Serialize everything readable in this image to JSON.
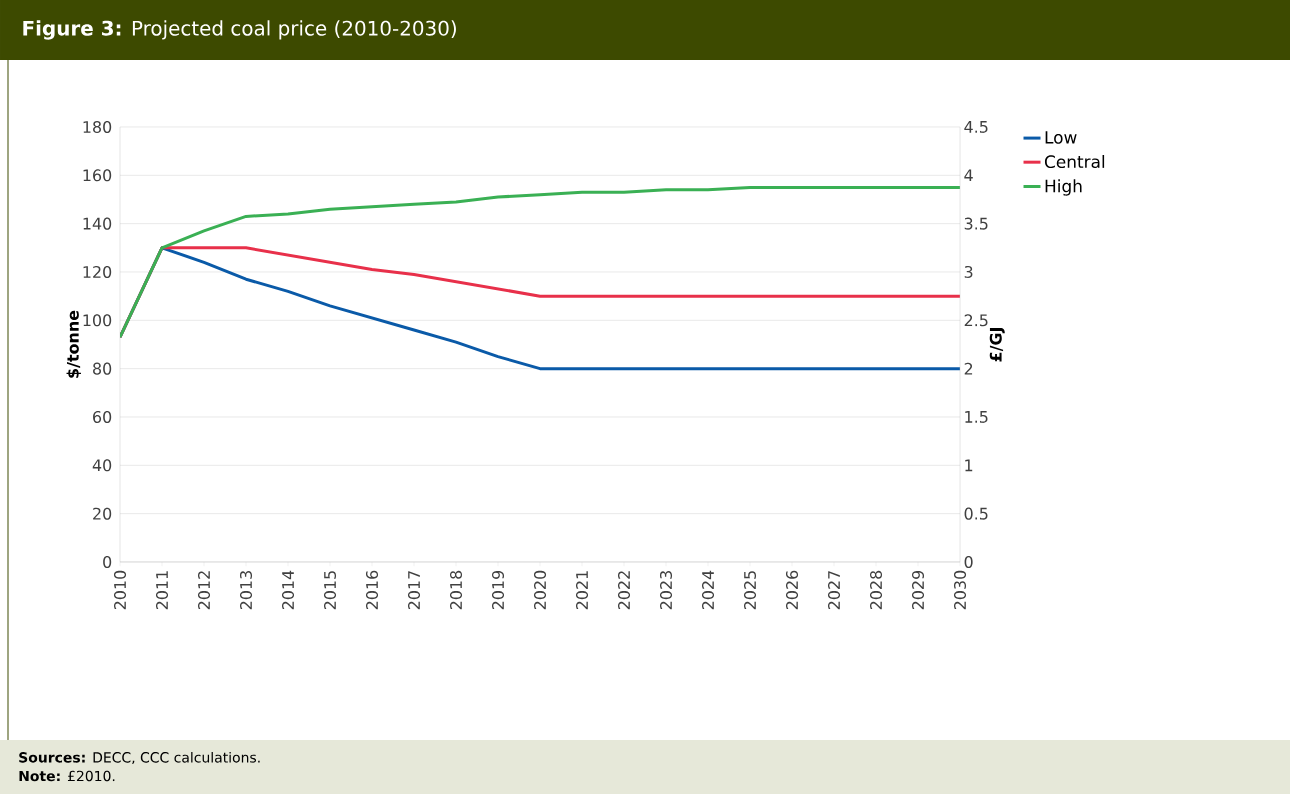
{
  "chart_data": {
    "type": "line",
    "title": "**Figure 3:** Projected coal price (2010-2030)",
    "ylabel": "$/tonne",
    "y2label": "£/GJ",
    "annotations": [
      "**Sources:** DECC, CCC calculations.",
      "**Note:** £2010."
    ],
    "x": [
      2010,
      2011,
      2012,
      2013,
      2014,
      2015,
      2016,
      2017,
      2018,
      2019,
      2020,
      2021,
      2022,
      2023,
      2024,
      2025,
      2026,
      2027,
      2028,
      2029,
      2030
    ],
    "series": [
      {
        "name": "Low",
        "color": "#0a5aa8",
        "values": [
          93,
          130,
          124,
          117,
          112,
          106,
          101,
          96,
          91,
          85,
          80,
          80,
          80,
          80,
          80,
          80,
          80,
          80,
          80,
          80,
          80
        ]
      },
      {
        "name": "Central",
        "color": "#e8304a",
        "values": [
          93,
          130,
          130,
          130,
          127,
          124,
          121,
          119,
          116,
          113,
          110,
          110,
          110,
          110,
          110,
          110,
          110,
          110,
          110,
          110,
          110
        ]
      },
      {
        "name": "High",
        "color": "#3ab054",
        "values": [
          93,
          130,
          137,
          143,
          144,
          146,
          147,
          148,
          149,
          151,
          152,
          153,
          153,
          154,
          154,
          155,
          155,
          155,
          155,
          155,
          155
        ]
      }
    ],
    "xlim": [
      2010,
      2030
    ],
    "xticks": [
      2010,
      2011,
      2012,
      2013,
      2014,
      2015,
      2016,
      2017,
      2018,
      2019,
      2020,
      2021,
      2022,
      2023,
      2024,
      2025,
      2026,
      2027,
      2028,
      2029,
      2030
    ],
    "ylim": [
      0,
      180
    ],
    "yticks": [
      0,
      20,
      40,
      60,
      80,
      100,
      120,
      140,
      160,
      180
    ],
    "y2lim": [
      0,
      4.5
    ],
    "y2ticks": [
      0,
      0.5,
      1,
      1.5,
      2,
      2.5,
      3,
      3.5,
      4,
      4.5
    ],
    "grid": "y",
    "legend": "right",
    "marker": "none",
    "line_style": "solid"
  }
}
